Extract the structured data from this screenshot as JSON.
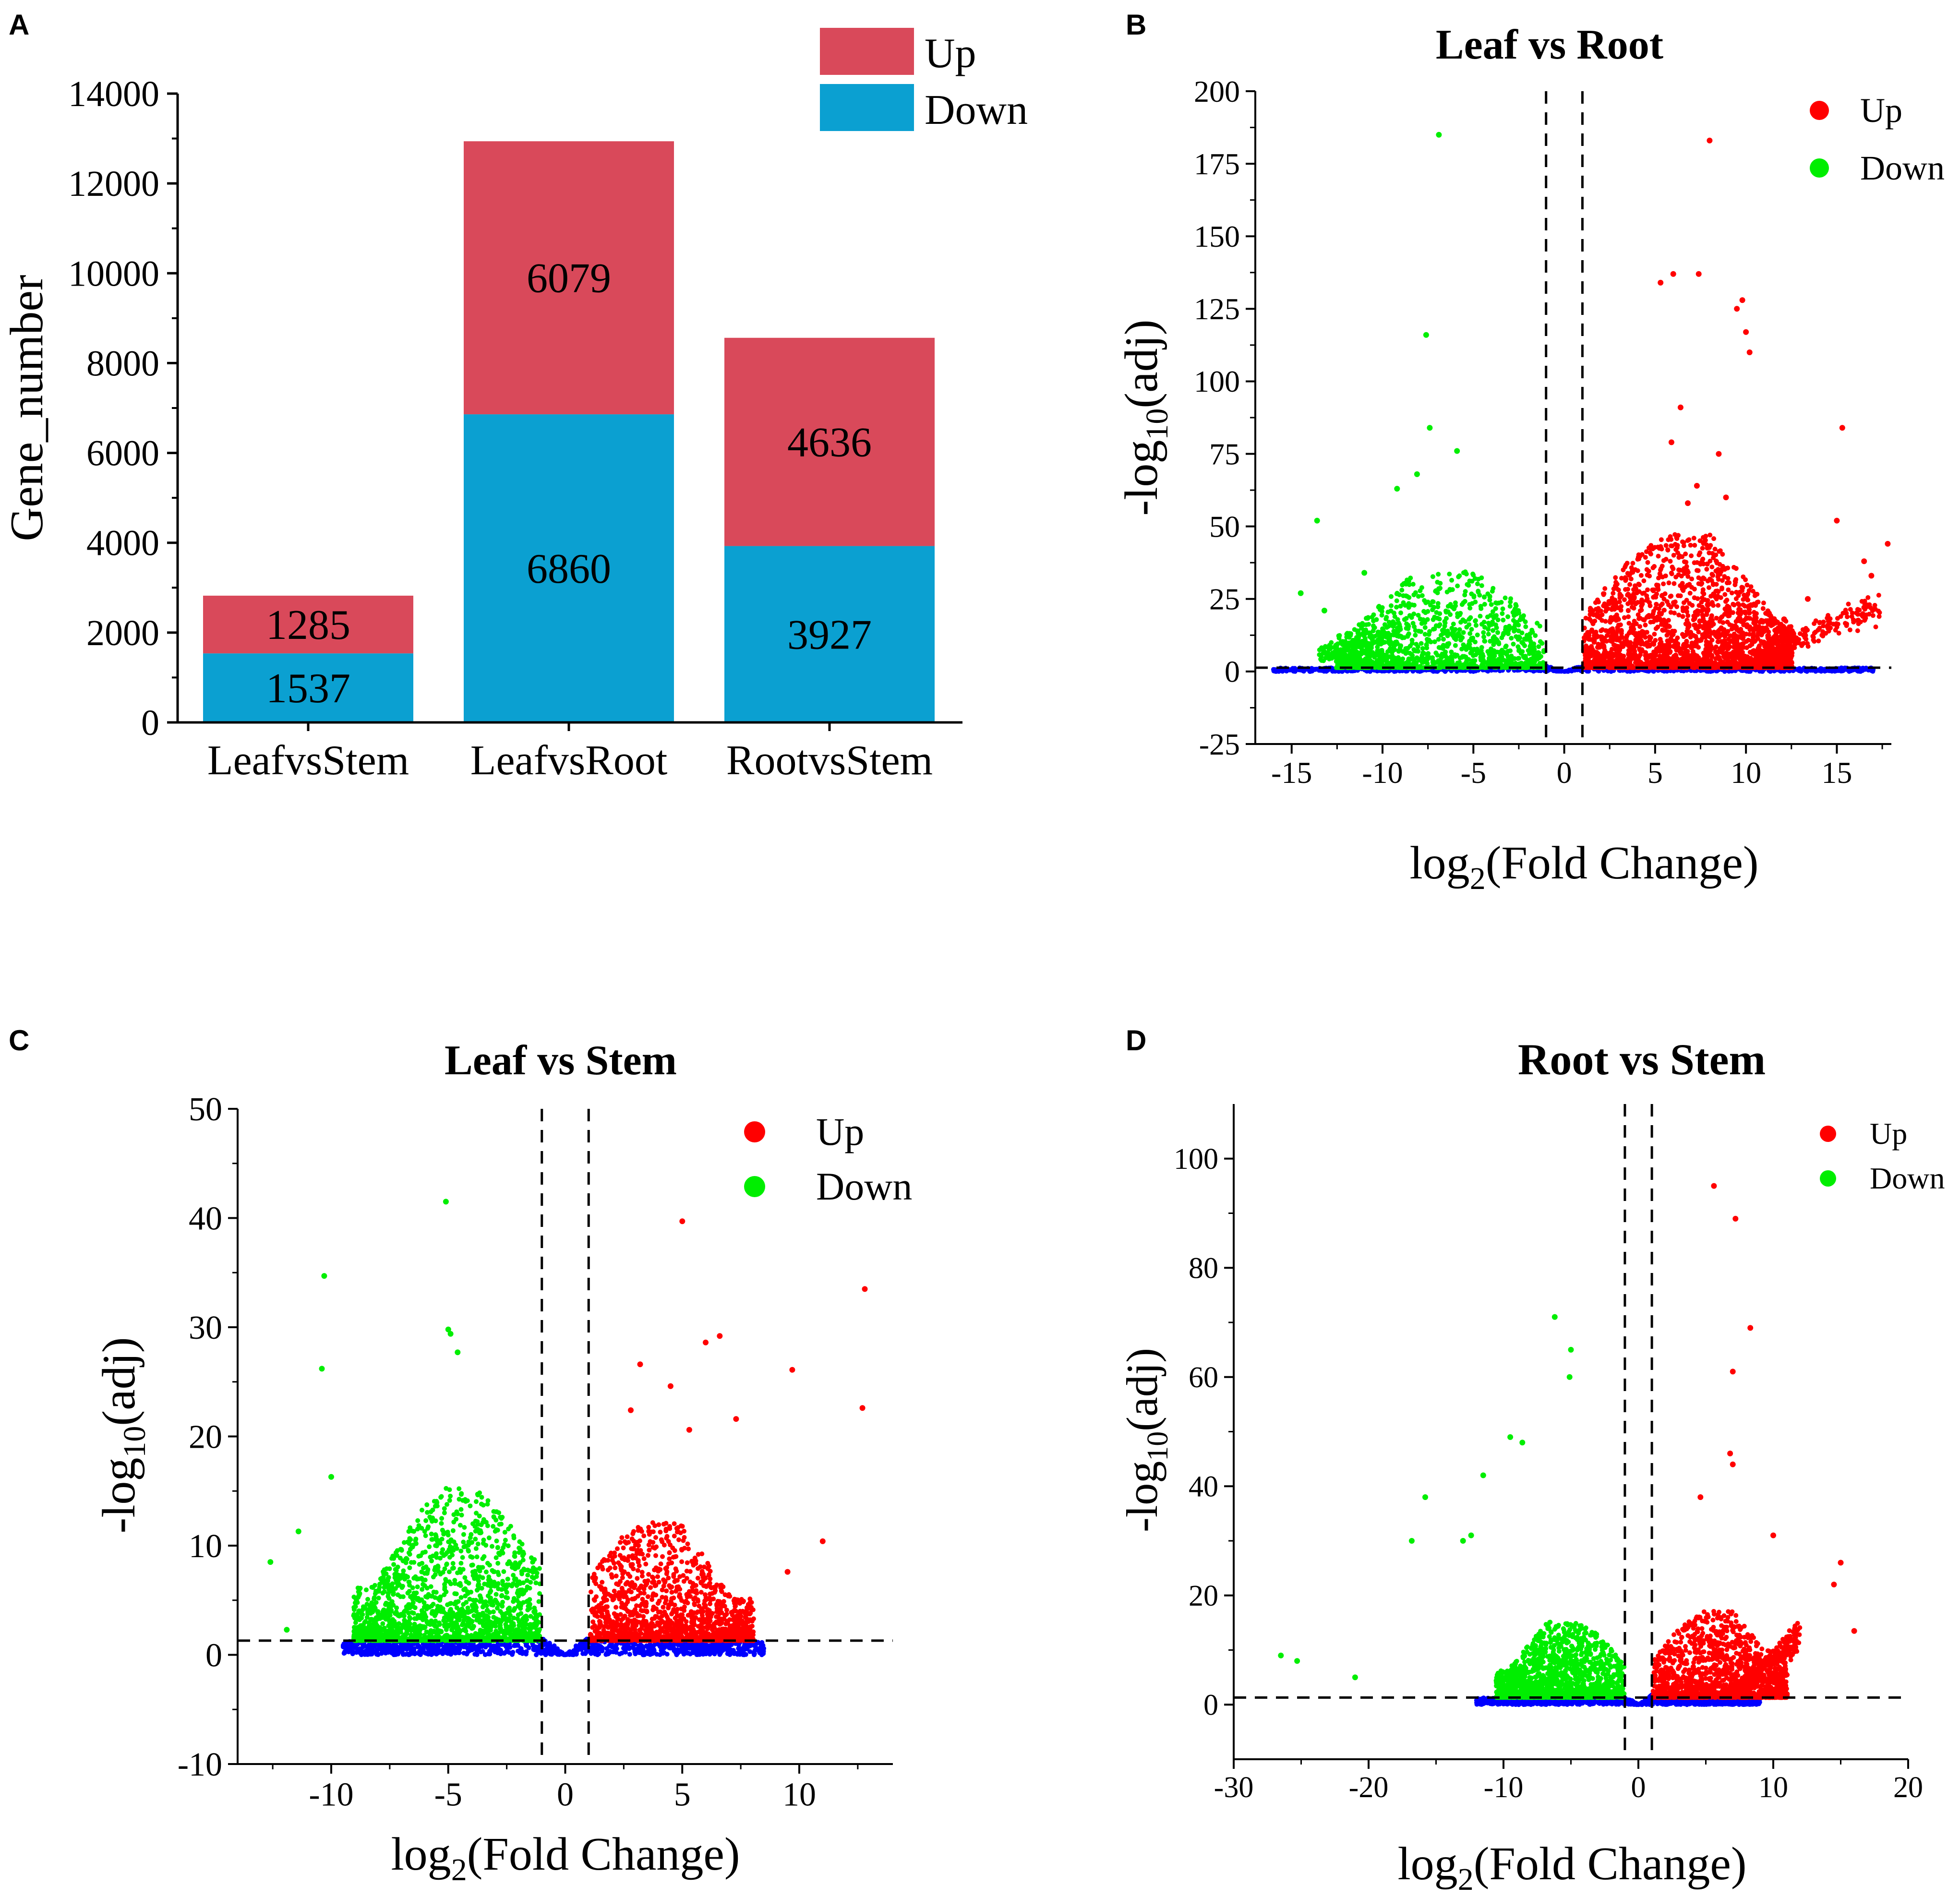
{
  "panel_letters": {
    "a": "A",
    "b": "B",
    "c": "C",
    "d": "D"
  },
  "colors": {
    "up_bar": "#d9495a",
    "down_bar": "#0ba0d1",
    "up_point": "#ff0000",
    "down_point": "#00ee00",
    "ns_point": "#0000ff"
  },
  "chart_data": [
    {
      "id": "A",
      "type": "bar",
      "stacked": true,
      "title": "",
      "xlabel": "",
      "ylabel": "Gene_number",
      "categories": [
        "LeafvsStem",
        "LeafvsRoot",
        "RootvsStem"
      ],
      "series": [
        {
          "name": "Down",
          "values": [
            1537,
            6860,
            3927
          ]
        },
        {
          "name": "Up",
          "values": [
            1285,
            6079,
            4636
          ]
        }
      ],
      "ylim": [
        0,
        14000
      ],
      "yticks": [
        "0",
        "2000",
        "4000",
        "6000",
        "8000",
        "10000",
        "12000",
        "14000"
      ],
      "legend": [
        {
          "name": "Up"
        },
        {
          "name": "Down"
        }
      ],
      "legend_position": "top-right"
    },
    {
      "id": "B",
      "type": "scatter",
      "title": "Leaf vs Root",
      "xlabel_base": "log",
      "xlabel_sub": "2",
      "xlabel_rest": "(Fold Change)",
      "ylabel_pre": "-log",
      "ylabel_sub": "10",
      "ylabel_rest": "(adj)",
      "xlim": [
        -17,
        18
      ],
      "ylim": [
        -25,
        200
      ],
      "xticks": [
        "-15",
        "-10",
        "-5",
        "0",
        "5",
        "10",
        "15"
      ],
      "yticks": [
        "-25",
        "0",
        "25",
        "50",
        "75",
        "100",
        "125",
        "150",
        "175",
        "200"
      ],
      "fold_change_cutoff": 1,
      "padj_threshold": 1.3,
      "legend": [
        {
          "name": "Up"
        },
        {
          "name": "Down"
        }
      ],
      "legend_position": "top-right",
      "series": [
        {
          "name": "Up",
          "points": [
            [
              8.0,
              183
            ],
            [
              6.0,
              137
            ],
            [
              7.4,
              137
            ],
            [
              5.3,
              134
            ],
            [
              9.8,
              128
            ],
            [
              9.5,
              125
            ],
            [
              10.0,
              117
            ],
            [
              10.2,
              110
            ],
            [
              6.4,
              91
            ],
            [
              15.3,
              84
            ],
            [
              5.9,
              79
            ],
            [
              8.5,
              75
            ],
            [
              17.8,
              44
            ],
            [
              15.0,
              52
            ],
            [
              16.5,
              38
            ],
            [
              16.9,
              33
            ],
            [
              13.4,
              25
            ],
            [
              12.1,
              18
            ],
            [
              7.3,
              64
            ],
            [
              8.9,
              60
            ],
            [
              6.8,
              58
            ]
          ]
        },
        {
          "name": "Down",
          "points": [
            [
              -6.9,
              185
            ],
            [
              -7.6,
              116
            ],
            [
              -7.4,
              84
            ],
            [
              -5.9,
              76
            ],
            [
              -13.6,
              52
            ],
            [
              -14.5,
              27
            ],
            [
              -13.2,
              21
            ],
            [
              -11.0,
              34
            ],
            [
              -8.1,
              68
            ],
            [
              -9.2,
              63
            ]
          ]
        }
      ]
    },
    {
      "id": "C",
      "type": "scatter",
      "title": "Leaf vs Stem",
      "xlabel_base": "log",
      "xlabel_sub": "2",
      "xlabel_rest": "(Fold Change)",
      "ylabel_pre": "-log",
      "ylabel_sub": "10",
      "ylabel_rest": "(adj)",
      "xlim": [
        -14,
        14
      ],
      "ylim": [
        -10,
        50
      ],
      "xticks": [
        "-10",
        "-5",
        "0",
        "5",
        "10"
      ],
      "yticks": [
        "-10",
        "0",
        "10",
        "20",
        "30",
        "40",
        "50"
      ],
      "fold_change_cutoff": 1,
      "padj_threshold": 1.3,
      "legend": [
        {
          "name": "Up"
        },
        {
          "name": "Down"
        }
      ],
      "legend_position": "top-right",
      "series": [
        {
          "name": "Up",
          "points": [
            [
              5.0,
              39.7
            ],
            [
              12.8,
              33.5
            ],
            [
              6.6,
              29.2
            ],
            [
              6.0,
              28.6
            ],
            [
              3.2,
              26.6
            ],
            [
              9.7,
              26.1
            ],
            [
              4.5,
              24.6
            ],
            [
              12.7,
              22.6
            ],
            [
              7.3,
              21.6
            ],
            [
              2.8,
              22.4
            ],
            [
              5.3,
              20.6
            ],
            [
              11.0,
              10.4
            ],
            [
              9.5,
              7.6
            ]
          ]
        },
        {
          "name": "Down",
          "points": [
            [
              -5.1,
              41.5
            ],
            [
              -10.3,
              34.7
            ],
            [
              -5.0,
              29.8
            ],
            [
              -4.6,
              27.7
            ],
            [
              -10.4,
              26.2
            ],
            [
              -12.6,
              8.5
            ],
            [
              -11.9,
              2.3
            ],
            [
              -4.9,
              29.4
            ],
            [
              -10.0,
              16.3
            ],
            [
              -11.4,
              11.3
            ]
          ]
        }
      ]
    },
    {
      "id": "D",
      "type": "scatter",
      "title": "Root vs Stem",
      "xlabel_base": "log",
      "xlabel_sub": "2",
      "xlabel_rest": "(Fold Change)",
      "ylabel_pre": "-log",
      "ylabel_sub": "10",
      "ylabel_rest": "(adj)",
      "xlim": [
        -30,
        20
      ],
      "ylim": [
        -10,
        110
      ],
      "xticks": [
        "-30",
        "-20",
        "-10",
        "0",
        "10",
        "20"
      ],
      "yticks": [
        "0",
        "20",
        "40",
        "60",
        "80",
        "100"
      ],
      "fold_change_cutoff": 1,
      "padj_threshold": 1.3,
      "legend": [
        {
          "name": "Up"
        },
        {
          "name": "Down"
        }
      ],
      "legend_position": "top-right",
      "series": [
        {
          "name": "Up",
          "points": [
            [
              5.6,
              95
            ],
            [
              7.2,
              89
            ],
            [
              8.3,
              69
            ],
            [
              7.0,
              61
            ],
            [
              6.8,
              46
            ],
            [
              7.0,
              44
            ],
            [
              15.0,
              26
            ],
            [
              16.0,
              13.5
            ],
            [
              14.5,
              22
            ],
            [
              4.6,
              38
            ],
            [
              10.0,
              31
            ]
          ]
        },
        {
          "name": "Down",
          "points": [
            [
              -6.2,
              71
            ],
            [
              -5.0,
              65
            ],
            [
              -5.1,
              60
            ],
            [
              -9.5,
              49
            ],
            [
              -8.6,
              48
            ],
            [
              -15.8,
              38
            ],
            [
              -16.8,
              30
            ],
            [
              -26.5,
              9
            ],
            [
              -25.3,
              8
            ],
            [
              -21.0,
              5
            ],
            [
              -11.5,
              42
            ],
            [
              -13.0,
              30
            ],
            [
              -12.4,
              31
            ]
          ]
        }
      ]
    }
  ]
}
